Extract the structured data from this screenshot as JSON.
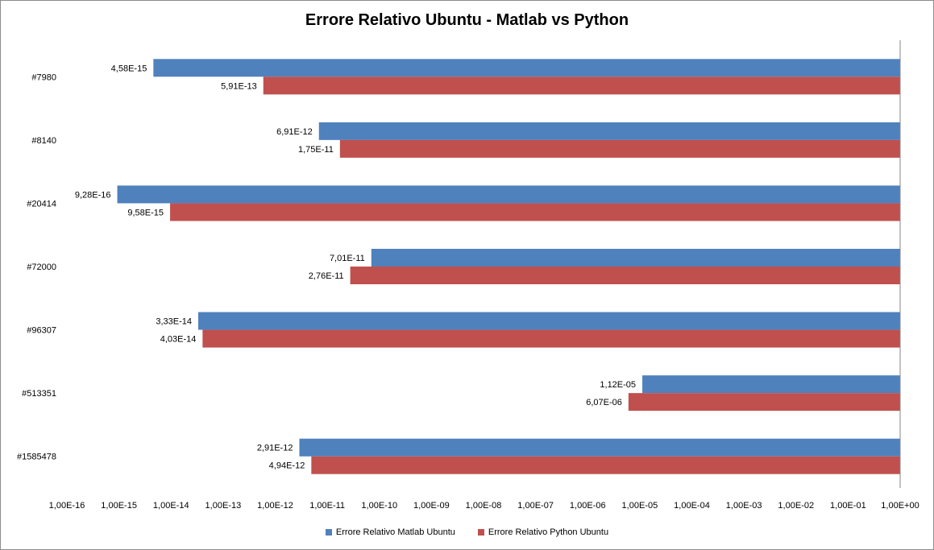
{
  "chart_data": {
    "type": "bar",
    "orientation": "horizontal",
    "title": "Errore Relativo Ubuntu - Matlab vs Python",
    "xlabel": "",
    "ylabel": "",
    "x_scale": "log",
    "xlim": [
      1e-16,
      1
    ],
    "x_tick_labels": [
      "1,00E-16",
      "1,00E-15",
      "1,00E-14",
      "1,00E-13",
      "1,00E-12",
      "1,00E-11",
      "1,00E-10",
      "1,00E-09",
      "1,00E-08",
      "1,00E-07",
      "1,00E-06",
      "1,00E-05",
      "1,00E-04",
      "1,00E-03",
      "1,00E-02",
      "1,00E-01",
      "1,00E+00"
    ],
    "x_tick_values": [
      1e-16,
      1e-15,
      1e-14,
      1e-13,
      1e-12,
      1e-11,
      1e-10,
      1e-09,
      1e-08,
      1e-07,
      1e-06,
      1e-05,
      0.0001,
      0.001,
      0.01,
      0.1,
      1
    ],
    "categories": [
      "#7980",
      "#8140",
      "#20414",
      "#72000",
      "#96307",
      "#513351",
      "#1585478"
    ],
    "series": [
      {
        "name": "Errore Relativo Matlab  Ubuntu",
        "color": "#4f81bd",
        "values": [
          4.58e-15,
          6.91e-12,
          9.28e-16,
          7.01e-11,
          3.33e-14,
          1.12e-05,
          2.91e-12
        ],
        "labels": [
          "4,58E-15",
          "6,91E-12",
          "9,28E-16",
          "7,01E-11",
          "3,33E-14",
          "1,12E-05",
          "2,91E-12"
        ]
      },
      {
        "name": "Errore Relativo Python Ubuntu",
        "color": "#c0504d",
        "values": [
          5.91e-13,
          1.75e-11,
          9.58e-15,
          2.76e-11,
          4.03e-14,
          6.07e-06,
          4.94e-12
        ],
        "labels": [
          "5,91E-13",
          "1,75E-11",
          "9,58E-15",
          "2,76E-11",
          "4,03E-14",
          "6,07E-06",
          "4,94E-12"
        ]
      }
    ],
    "grid": false,
    "legend_position": "bottom"
  }
}
